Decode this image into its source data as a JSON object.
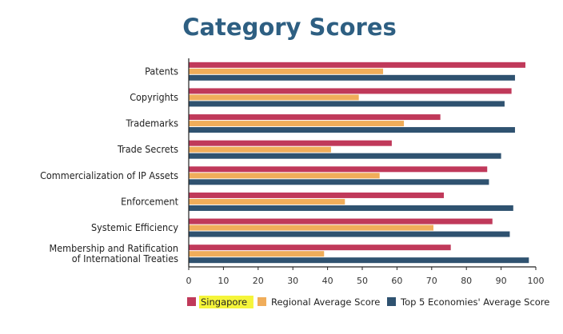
{
  "chart_data": {
    "type": "bar",
    "orientation": "horizontal",
    "title": "Category Scores",
    "categories": [
      "Patents",
      "Copyrights",
      "Trademarks",
      "Trade Secrets",
      "Commercialization of IP Assets",
      "Enforcement",
      "Systemic Efficiency",
      "Membership and Ratification of International Treaties"
    ],
    "series": [
      {
        "name": "Singapore",
        "color": "#c0395a",
        "values": [
          97,
          93,
          72.5,
          58.5,
          86,
          73.5,
          87.5,
          75.5
        ]
      },
      {
        "name": "Regional Average Score",
        "color": "#f0ad5a",
        "values": [
          56,
          49,
          62,
          41,
          55,
          45,
          70.5,
          39
        ]
      },
      {
        "name": "Top 5 Economies' Average Score",
        "color": "#2f5270",
        "values": [
          94,
          91,
          94,
          90,
          86.5,
          93.5,
          92.5,
          98
        ]
      }
    ],
    "xlim": [
      0,
      100
    ],
    "xticks": [
      "0",
      "10",
      "20",
      "30",
      "40",
      "50",
      "60",
      "70",
      "80",
      "90",
      "100"
    ],
    "grid": false,
    "legend": "bottom",
    "legend_highlight": "Singapore"
  }
}
